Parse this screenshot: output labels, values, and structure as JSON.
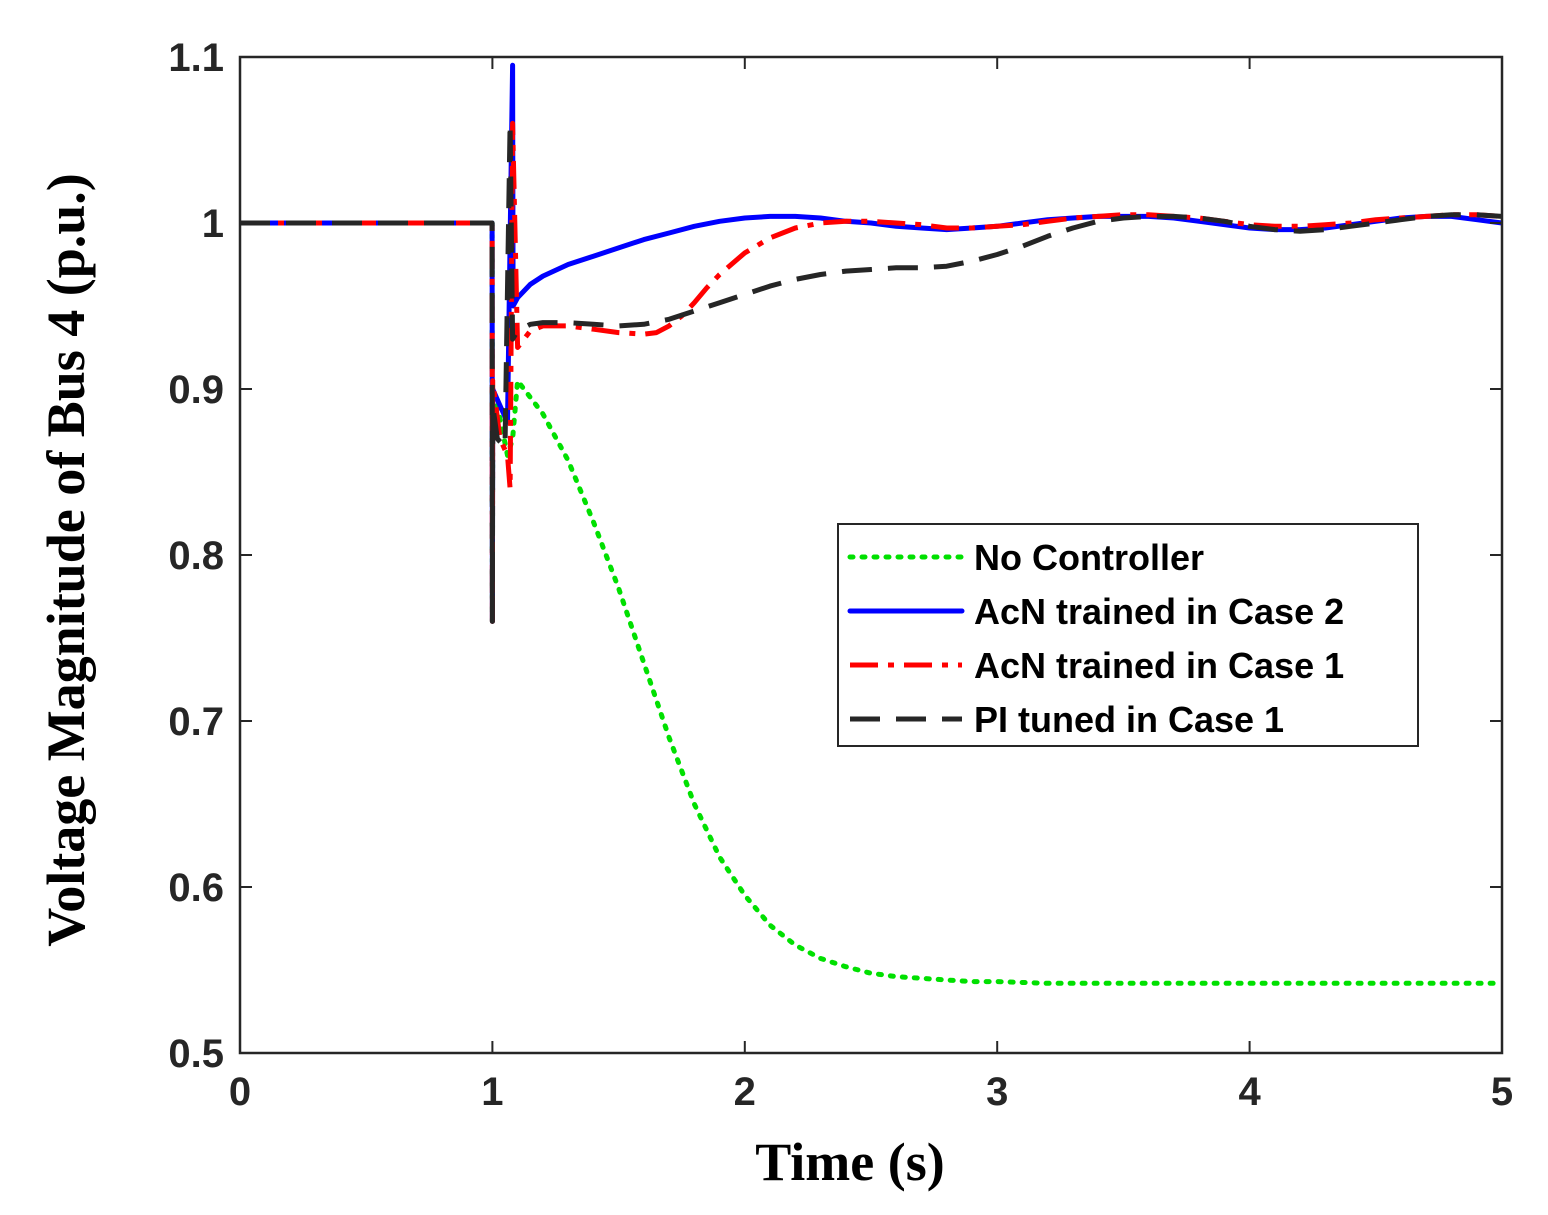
{
  "chart_data": {
    "type": "line",
    "title": "",
    "xlabel": "Time (s)",
    "ylabel": "Voltage Magnitude of Bus 4 (p.u.)",
    "xlim": [
      0,
      5
    ],
    "ylim": [
      0.5,
      1.1
    ],
    "xticks": [
      0,
      1,
      2,
      3,
      4,
      5
    ],
    "xtick_labels": [
      "0",
      "1",
      "2",
      "3",
      "4",
      "5"
    ],
    "yticks": [
      0.5,
      0.6,
      0.7,
      0.8,
      0.9,
      1.0,
      1.1
    ],
    "ytick_labels": [
      "0.5",
      "0.6",
      "0.7",
      "0.8",
      "0.9",
      "1",
      "1.1"
    ],
    "grid": false,
    "legend_position": "center-right",
    "series": [
      {
        "name": "No Controller",
        "color": "#00e000",
        "style": "dotted",
        "x": [
          0,
          0.999,
          1.0,
          1.001,
          1.02,
          1.06,
          1.08,
          1.1,
          1.2,
          1.3,
          1.4,
          1.5,
          1.6,
          1.7,
          1.8,
          1.9,
          2.0,
          2.1,
          2.2,
          2.3,
          2.4,
          2.5,
          2.6,
          2.7,
          2.8,
          2.9,
          3.0,
          3.2,
          3.5,
          4.0,
          4.5,
          5.0
        ],
        "y": [
          1.0,
          1.0,
          0.76,
          0.9,
          0.89,
          0.86,
          0.87,
          0.905,
          0.885,
          0.857,
          0.82,
          0.78,
          0.735,
          0.69,
          0.65,
          0.618,
          0.595,
          0.577,
          0.565,
          0.557,
          0.552,
          0.548,
          0.546,
          0.545,
          0.544,
          0.543,
          0.543,
          0.542,
          0.542,
          0.542,
          0.542,
          0.542
        ]
      },
      {
        "name": "AcN trained in Case 2",
        "color": "#0000ff",
        "style": "solid",
        "x": [
          0,
          0.999,
          1.0,
          1.001,
          1.03,
          1.06,
          1.08,
          1.082,
          1.1,
          1.15,
          1.2,
          1.3,
          1.4,
          1.5,
          1.6,
          1.7,
          1.8,
          1.9,
          2.0,
          2.1,
          2.2,
          2.3,
          2.4,
          2.5,
          2.6,
          2.7,
          2.8,
          2.9,
          3.0,
          3.1,
          3.2,
          3.3,
          3.4,
          3.5,
          3.6,
          3.7,
          3.8,
          3.9,
          4.0,
          4.1,
          4.2,
          4.3,
          4.4,
          4.5,
          4.6,
          4.7,
          4.8,
          4.9,
          5.0
        ],
        "y": [
          1.0,
          1.0,
          0.76,
          0.9,
          0.89,
          0.88,
          1.095,
          0.95,
          0.955,
          0.963,
          0.968,
          0.975,
          0.98,
          0.985,
          0.99,
          0.994,
          0.998,
          1.001,
          1.003,
          1.004,
          1.004,
          1.003,
          1.001,
          1.0,
          0.998,
          0.997,
          0.996,
          0.997,
          0.998,
          1.0,
          1.002,
          1.003,
          1.004,
          1.004,
          1.004,
          1.003,
          1.001,
          0.999,
          0.997,
          0.996,
          0.996,
          0.997,
          0.999,
          1.001,
          1.003,
          1.004,
          1.004,
          1.002,
          1.0
        ]
      },
      {
        "name": "AcN trained in Case 1",
        "color": "#ff0000",
        "style": "dashdot",
        "x": [
          0,
          0.999,
          1.0,
          1.001,
          1.03,
          1.06,
          1.07,
          1.08,
          1.1,
          1.15,
          1.2,
          1.3,
          1.4,
          1.5,
          1.6,
          1.65,
          1.7,
          1.75,
          1.8,
          1.85,
          1.9,
          2.0,
          2.1,
          2.2,
          2.3,
          2.4,
          2.5,
          2.6,
          2.7,
          2.8,
          2.9,
          3.0,
          3.1,
          3.2,
          3.3,
          3.4,
          3.5,
          3.6,
          3.7,
          3.8,
          3.9,
          4.0,
          4.1,
          4.2,
          4.3,
          4.4,
          4.5,
          4.6,
          4.7,
          4.8,
          4.9,
          5.0
        ],
        "y": [
          1.0,
          1.0,
          0.76,
          0.905,
          0.87,
          0.86,
          0.84,
          1.06,
          0.925,
          0.935,
          0.938,
          0.938,
          0.936,
          0.934,
          0.933,
          0.934,
          0.938,
          0.944,
          0.952,
          0.961,
          0.969,
          0.982,
          0.991,
          0.997,
          1.0,
          1.001,
          1.001,
          1.0,
          0.999,
          0.997,
          0.997,
          0.998,
          0.999,
          1.001,
          1.003,
          1.004,
          1.005,
          1.005,
          1.004,
          1.003,
          1.001,
          0.999,
          0.998,
          0.998,
          0.999,
          1.0,
          1.002,
          1.003,
          1.004,
          1.005,
          1.005,
          1.004
        ]
      },
      {
        "name": "PI tuned in Case 1",
        "color": "#262626",
        "style": "dashed",
        "x": [
          0,
          0.999,
          1.0,
          1.001,
          1.02,
          1.05,
          1.07,
          1.08,
          1.1,
          1.15,
          1.2,
          1.3,
          1.4,
          1.5,
          1.6,
          1.7,
          1.8,
          1.9,
          2.0,
          2.1,
          2.2,
          2.3,
          2.4,
          2.5,
          2.6,
          2.7,
          2.8,
          2.9,
          3.0,
          3.1,
          3.2,
          3.3,
          3.4,
          3.5,
          3.6,
          3.7,
          3.8,
          3.9,
          4.0,
          4.1,
          4.2,
          4.3,
          4.4,
          4.5,
          4.6,
          4.7,
          4.8,
          4.9,
          5.0
        ],
        "y": [
          1.0,
          1.0,
          0.76,
          0.89,
          0.87,
          0.865,
          1.06,
          0.93,
          0.935,
          0.939,
          0.94,
          0.94,
          0.939,
          0.938,
          0.939,
          0.942,
          0.947,
          0.952,
          0.957,
          0.962,
          0.966,
          0.969,
          0.971,
          0.972,
          0.973,
          0.973,
          0.974,
          0.977,
          0.981,
          0.986,
          0.992,
          0.997,
          1.001,
          1.003,
          1.004,
          1.004,
          1.003,
          1.001,
          0.998,
          0.996,
          0.995,
          0.996,
          0.998,
          1.0,
          1.002,
          1.004,
          1.005,
          1.005,
          1.004
        ]
      }
    ]
  }
}
